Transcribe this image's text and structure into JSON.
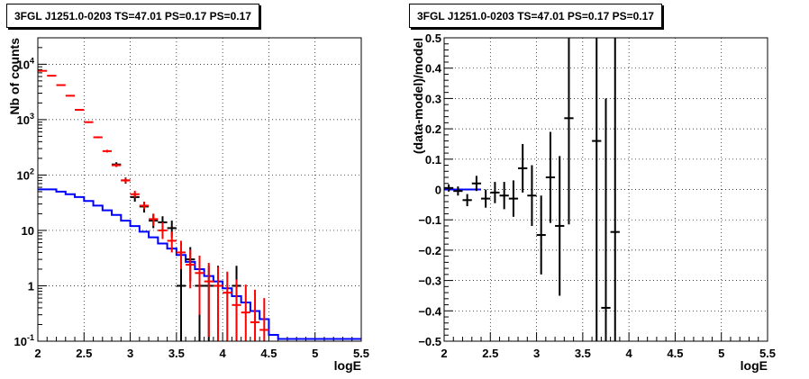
{
  "chart_data": [
    {
      "type": "line",
      "title": "3FGL J1251.0-0203 TS=47.01 PS=0.17 PS=0.17",
      "xlabel": "logE",
      "ylabel": "Nb of counts",
      "xlim": [
        2,
        5.5
      ],
      "ylim": [
        0.1,
        30000
      ],
      "yscale": "log",
      "grid": true,
      "x_ticks": [
        "2",
        "2.5",
        "3",
        "3.5",
        "4",
        "4.5",
        "5",
        "5.5"
      ],
      "y_ticks": [
        {
          "value": 0.1,
          "base": "10",
          "exp": "-1"
        },
        {
          "value": 1,
          "base": "1",
          "exp": ""
        },
        {
          "value": 10,
          "base": "10",
          "exp": ""
        },
        {
          "value": 100,
          "base": "10",
          "exp": "2"
        },
        {
          "value": 1000,
          "base": "10",
          "exp": "3"
        },
        {
          "value": 10000,
          "base": "10",
          "exp": "4"
        }
      ],
      "x_edges": [
        2.0,
        2.1,
        2.2,
        2.3,
        2.4,
        2.5,
        2.6,
        2.7,
        2.8,
        2.9,
        3.0,
        3.1,
        3.2,
        3.3,
        3.4,
        3.5,
        3.6,
        3.7,
        3.8,
        3.9,
        4.0,
        4.1,
        4.2,
        4.3,
        4.4,
        4.5,
        4.6,
        4.7,
        4.8,
        4.9,
        5.0,
        5.1,
        5.2,
        5.3,
        5.4,
        5.5
      ],
      "series": [
        {
          "role": "model",
          "color": "#ff0000",
          "x": [
            2.05,
            2.15,
            2.25,
            2.35,
            2.45,
            2.55,
            2.65,
            2.75,
            2.85,
            2.95,
            3.05,
            3.15,
            3.25,
            3.35,
            3.45,
            3.55,
            3.65,
            3.75,
            3.85,
            3.95,
            4.05,
            4.15,
            4.25,
            4.35,
            4.45
          ],
          "y": [
            7600,
            6200,
            4200,
            2700,
            1500,
            900,
            480,
            270,
            150,
            80,
            45,
            28,
            16,
            10,
            6.5,
            4,
            2.4,
            1.7,
            1.2,
            1.0,
            0.75,
            0.45,
            0.33,
            0.22,
            0.16
          ],
          "ylow": [
            7500,
            6100,
            4100,
            2650,
            1460,
            870,
            460,
            255,
            140,
            72,
            39,
            24,
            12,
            7,
            4,
            2,
            0.9,
            0.3,
            0.12,
            0.1,
            0.1,
            0.1,
            0.1,
            0.1,
            0.1
          ],
          "yhigh": [
            7700,
            6300,
            4300,
            2750,
            1540,
            930,
            500,
            285,
            160,
            88,
            52,
            33,
            20,
            14,
            9.5,
            6.5,
            4.5,
            3.5,
            2.6,
            2.2,
            1.8,
            1.3,
            1.05,
            0.85,
            0.6
          ]
        },
        {
          "role": "data",
          "color": "#000000",
          "x": [
            2.85,
            2.95,
            3.05,
            3.15,
            3.25,
            3.35,
            3.45,
            3.55,
            3.65,
            3.75,
            3.85,
            3.95,
            4.15
          ],
          "y": [
            155,
            80,
            40,
            27,
            15,
            14,
            11,
            1,
            3,
            1,
            1,
            1,
            1
          ],
          "ylow": [
            140,
            70,
            33,
            21,
            11,
            10,
            7.5,
            0.1,
            1.2,
            0.1,
            0.1,
            0.1,
            0.1
          ],
          "yhigh": [
            170,
            90,
            48,
            33,
            20,
            18,
            15,
            2.3,
            5,
            2.3,
            2.3,
            2.3,
            2.3
          ]
        },
        {
          "role": "background",
          "color": "#0000ff",
          "y": [
            55,
            55,
            50,
            45,
            40,
            34,
            28,
            23,
            19,
            15,
            12,
            9.5,
            7.5,
            5.8,
            4.7,
            3.6,
            2.7,
            2.0,
            1.5,
            1.2,
            0.9,
            0.65,
            0.5,
            0.35,
            0.25,
            0.13,
            0.11,
            0.11,
            0.11,
            0.11,
            0.11,
            0.11,
            0.11,
            0.11,
            0.11
          ]
        }
      ]
    },
    {
      "type": "scatter",
      "title": "3FGL J1251.0-0203 TS=47.01 PS=0.17 PS=0.17",
      "xlabel": "logE",
      "ylabel": "(data-model)/model",
      "xlim": [
        2,
        5.5
      ],
      "ylim": [
        -0.5,
        0.5
      ],
      "grid": true,
      "x_ticks": [
        "2",
        "2.5",
        "3",
        "3.5",
        "4",
        "4.5",
        "5",
        "5.5"
      ],
      "y_ticks": [
        "−0.5",
        "−0.4",
        "−0.3",
        "−0.2",
        "−0.1",
        "0",
        "0.1",
        "0.2",
        "0.3",
        "0.4",
        "0.5"
      ],
      "y_tick_values": [
        -0.5,
        -0.4,
        -0.3,
        -0.2,
        -0.1,
        0,
        0.1,
        0.2,
        0.3,
        0.4,
        0.5
      ],
      "baseline_color": "#0000ff",
      "points": {
        "x": [
          2.05,
          2.15,
          2.25,
          2.35,
          2.45,
          2.55,
          2.65,
          2.75,
          2.85,
          2.95,
          3.05,
          3.15,
          3.25,
          3.35,
          3.65,
          3.75,
          3.85
        ],
        "y": [
          0.005,
          -0.005,
          -0.035,
          0.02,
          -0.03,
          -0.01,
          -0.02,
          -0.03,
          0.07,
          -0.02,
          -0.15,
          0.04,
          -0.12,
          0.235,
          0.16,
          -0.39,
          -0.14
        ],
        "yerr": [
          0.012,
          0.015,
          0.02,
          0.025,
          0.03,
          0.035,
          0.045,
          0.06,
          0.08,
          0.1,
          0.13,
          0.15,
          0.23,
          0.35,
          0.7,
          0.69,
          0.75
        ]
      }
    }
  ]
}
